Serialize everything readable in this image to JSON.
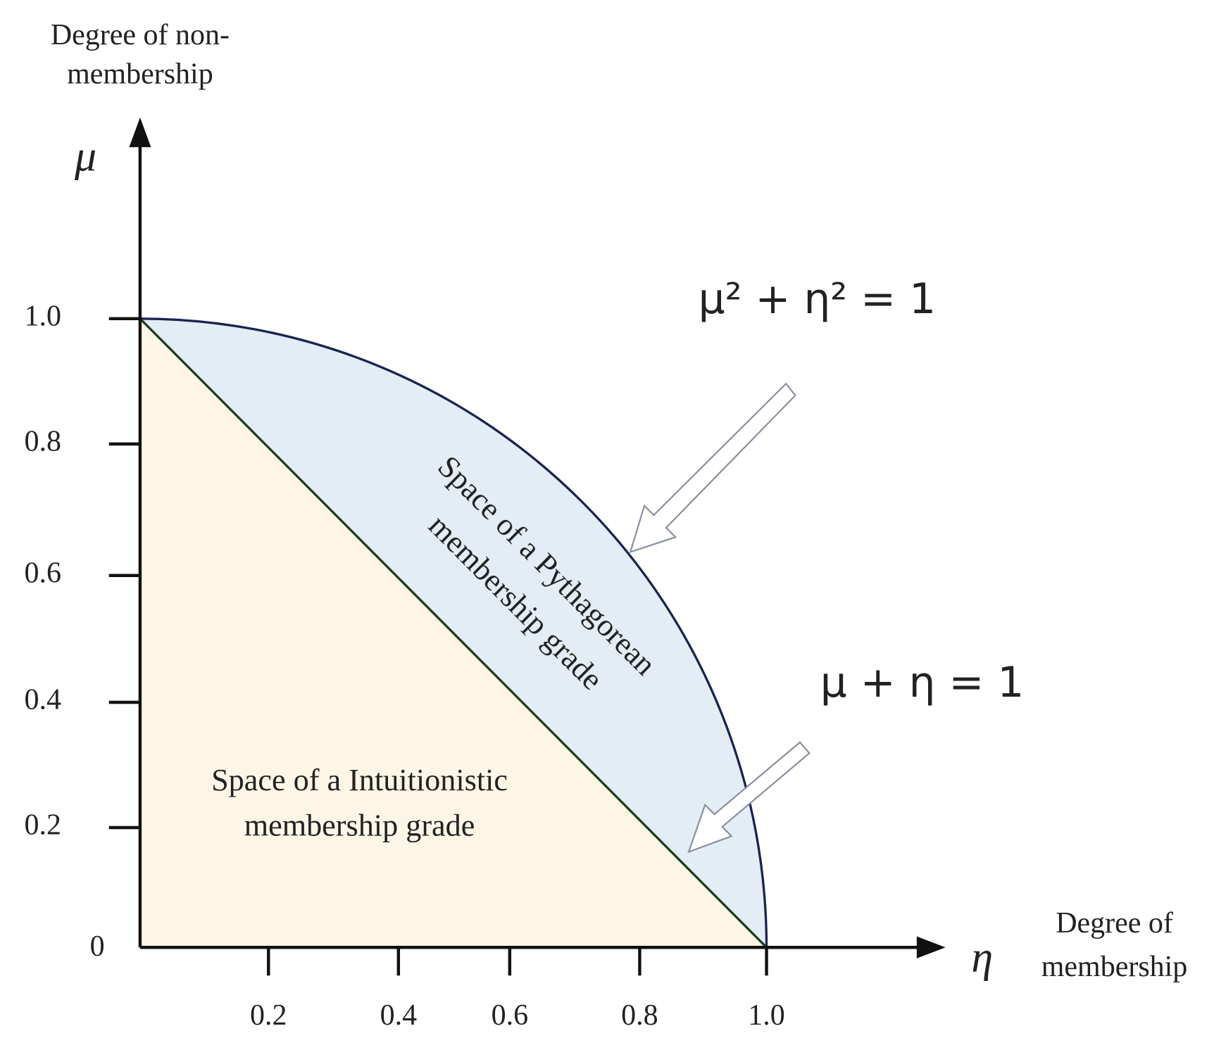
{
  "y_axis": {
    "title_lines": [
      "Degree of non-",
      "membership"
    ],
    "symbol": "μ",
    "ticks": [
      "0.2",
      "0.4",
      "0.6",
      "0.8",
      "1.0"
    ]
  },
  "x_axis": {
    "title_lines": [
      "Degree of",
      "membership"
    ],
    "symbol": "η",
    "ticks": [
      "0.2",
      "0.4",
      "0.6",
      "0.8",
      "1.0"
    ]
  },
  "origin_label": "0",
  "regions": {
    "pythagorean": [
      "Space of a Pythagorean",
      "membership grade"
    ],
    "intuitionistic": [
      "Space of a Intuitionistic",
      "membership grade"
    ]
  },
  "equations": {
    "circle": "μ² + η² = 1",
    "line": "μ + η = 1"
  }
}
